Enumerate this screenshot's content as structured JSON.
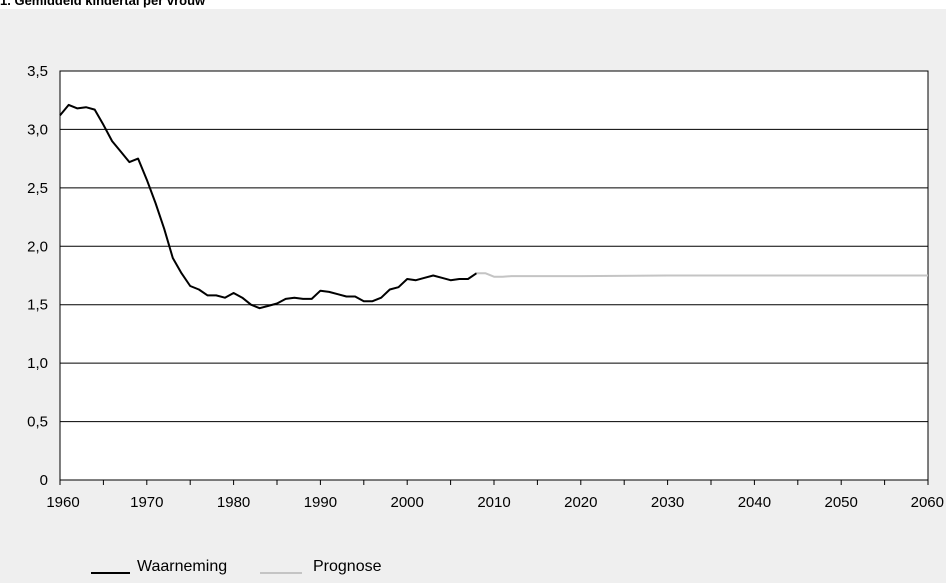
{
  "chart_data": {
    "type": "line",
    "title": "1. Gemiddeld kindertal per vrouw",
    "xlim": [
      1960,
      2060
    ],
    "ylim": [
      0,
      3.5
    ],
    "x_ticks": [
      1960,
      1970,
      1980,
      1990,
      2000,
      2010,
      2020,
      2030,
      2040,
      2050,
      2060
    ],
    "x_tick_labels": [
      "1960",
      "1970",
      "1980",
      "1990",
      "2000",
      "2010",
      "2020",
      "2030",
      "2040",
      "2050",
      "2060"
    ],
    "y_ticks": [
      0,
      0.5,
      1.0,
      1.5,
      2.0,
      2.5,
      3.0,
      3.5
    ],
    "y_tick_labels": [
      "0",
      "0,5",
      "1,0",
      "1,5",
      "2,0",
      "2,5",
      "3,0",
      "3,5"
    ],
    "grid": "horizontal",
    "legend_position": "bottom-left",
    "series": [
      {
        "name": "Waarneming",
        "color": "#000000",
        "x": [
          1960,
          1961,
          1962,
          1963,
          1964,
          1965,
          1966,
          1967,
          1968,
          1969,
          1970,
          1971,
          1972,
          1973,
          1974,
          1975,
          1976,
          1977,
          1978,
          1979,
          1980,
          1981,
          1982,
          1983,
          1984,
          1985,
          1986,
          1987,
          1988,
          1989,
          1990,
          1991,
          1992,
          1993,
          1994,
          1995,
          1996,
          1997,
          1998,
          1999,
          2000,
          2001,
          2002,
          2003,
          2004,
          2005,
          2006,
          2007,
          2008
        ],
        "y": [
          3.12,
          3.21,
          3.18,
          3.19,
          3.17,
          3.04,
          2.9,
          2.81,
          2.72,
          2.75,
          2.57,
          2.37,
          2.15,
          1.9,
          1.77,
          1.66,
          1.63,
          1.58,
          1.58,
          1.56,
          1.6,
          1.56,
          1.5,
          1.47,
          1.49,
          1.51,
          1.55,
          1.56,
          1.55,
          1.55,
          1.62,
          1.61,
          1.59,
          1.57,
          1.57,
          1.53,
          1.53,
          1.56,
          1.63,
          1.65,
          1.72,
          1.71,
          1.73,
          1.75,
          1.73,
          1.71,
          1.72,
          1.72,
          1.77
        ]
      },
      {
        "name": "Prognose",
        "color": "#c4c4c4",
        "x": [
          2008,
          2009,
          2010,
          2011,
          2012,
          2015,
          2020,
          2030,
          2040,
          2050,
          2060
        ],
        "y": [
          1.77,
          1.77,
          1.74,
          1.74,
          1.745,
          1.745,
          1.745,
          1.75,
          1.75,
          1.75,
          1.75
        ]
      }
    ]
  }
}
